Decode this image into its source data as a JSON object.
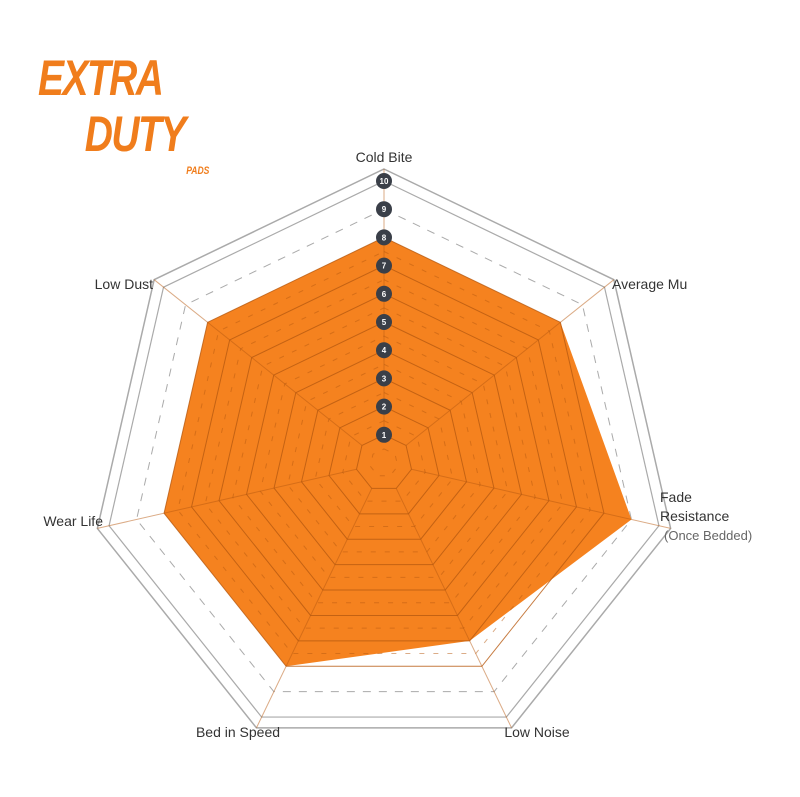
{
  "logo": {
    "line1": "EXTRA",
    "line2": "DUTY",
    "line3": "PADS"
  },
  "chart_data": {
    "type": "radar",
    "axes": [
      "Cold Bite",
      "Average Mu",
      "Fade Resistance",
      "Low Noise",
      "Bed in Speed",
      "Wear Life",
      "Low Dust"
    ],
    "axis_sublabels": {
      "Fade Resistance": "(Once Bedded)"
    },
    "values": [
      8,
      8,
      9,
      7,
      8,
      8,
      8
    ],
    "range": [
      0,
      10
    ],
    "tick_labels": [
      "1",
      "2",
      "3",
      "4",
      "5",
      "6",
      "7",
      "8",
      "9",
      "10"
    ],
    "fill_color": "#f5821f",
    "grid": true
  }
}
